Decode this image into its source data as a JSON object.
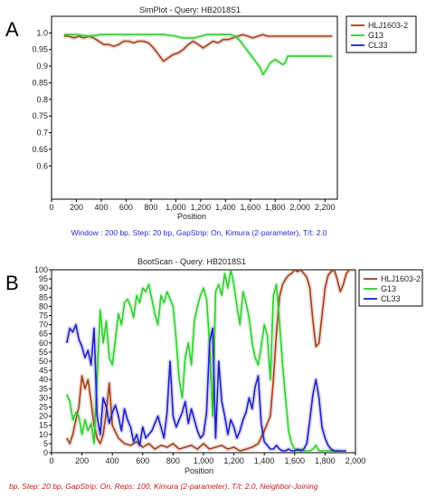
{
  "chart_data": [
    {
      "panel_label": "A",
      "type": "line",
      "title": "SimPlot - Query: HB2018S1",
      "xlabel": "Position",
      "ylabel": "",
      "xlim": [
        0,
        2300
      ],
      "ylim": [
        0.5,
        1.05
      ],
      "xticks": [
        0,
        200,
        400,
        600,
        800,
        1000,
        1200,
        1400,
        1600,
        1800,
        2000,
        2200
      ],
      "xtick_labels": [
        "0",
        "200",
        "400",
        "600",
        "800",
        "1,000",
        "1,200",
        "1,400",
        "1,600",
        "1,800",
        "2,000",
        "2,200"
      ],
      "yticks": [
        0.6,
        0.65,
        0.7,
        0.75,
        0.8,
        0.85,
        0.9,
        0.95,
        1.0
      ],
      "ytick_labels": [
        "0.6",
        "0.65",
        "0.7",
        "0.75",
        "0.8",
        "0.85",
        "0.9",
        "0.95",
        "1.0"
      ],
      "caption": "Window : 200 bp, Step: 20 bp, GapStrip: On, Kimura (2-parameter), T/t: 2.0",
      "legend_placement": "top-right outside",
      "grid": false,
      "series": [
        {
          "name": "HLJ1603-2",
          "color": "#a0401e",
          "x": [
            100,
            140,
            180,
            220,
            260,
            300,
            340,
            380,
            420,
            460,
            500,
            540,
            580,
            620,
            660,
            700,
            740,
            780,
            820,
            860,
            900,
            940,
            980,
            1020,
            1060,
            1100,
            1140,
            1180,
            1220,
            1260,
            1300,
            1340,
            1380,
            1420,
            1460,
            1500,
            1540,
            1580,
            1620,
            1660,
            1700,
            1740,
            1780,
            1820,
            1860,
            1900,
            1940,
            1980,
            2020,
            2060,
            2100,
            2140,
            2180,
            2220,
            2260
          ],
          "y": [
            0.99,
            0.99,
            0.985,
            0.99,
            0.985,
            0.99,
            0.985,
            0.975,
            0.965,
            0.965,
            0.96,
            0.965,
            0.975,
            0.975,
            0.97,
            0.975,
            0.975,
            0.97,
            0.955,
            0.935,
            0.915,
            0.925,
            0.935,
            0.94,
            0.95,
            0.965,
            0.975,
            0.965,
            0.955,
            0.965,
            0.975,
            0.97,
            0.98,
            0.98,
            0.985,
            0.99,
            0.995,
            0.99,
            0.985,
            0.99,
            0.995,
            0.99,
            0.99,
            0.99,
            0.99,
            0.99,
            0.99,
            0.99,
            0.99,
            0.99,
            0.99,
            0.99,
            0.99,
            0.99,
            0.99
          ]
        },
        {
          "name": "G13",
          "color": "#33cc33",
          "x": [
            100,
            200,
            300,
            400,
            500,
            600,
            700,
            800,
            900,
            1000,
            1050,
            1100,
            1150,
            1200,
            1250,
            1300,
            1350,
            1400,
            1440,
            1480,
            1520,
            1560,
            1600,
            1640,
            1680,
            1700,
            1720,
            1760,
            1800,
            1840,
            1860,
            1880,
            1900,
            1950,
            2000,
            2100,
            2200,
            2260
          ],
          "y": [
            0.995,
            0.995,
            0.99,
            0.995,
            0.995,
            0.995,
            0.995,
            0.995,
            0.995,
            0.99,
            0.985,
            0.985,
            0.985,
            0.99,
            0.995,
            0.995,
            0.995,
            0.995,
            0.995,
            0.99,
            0.975,
            0.955,
            0.935,
            0.915,
            0.895,
            0.875,
            0.885,
            0.91,
            0.92,
            0.91,
            0.905,
            0.91,
            0.93,
            0.93,
            0.93,
            0.93,
            0.93,
            0.93
          ]
        },
        {
          "name": "CL33",
          "color": "#2020c0",
          "x": [],
          "y": []
        }
      ]
    },
    {
      "panel_label": "B",
      "type": "line",
      "title": "BootScan - Query: HB2018S1",
      "xlabel": "Position",
      "ylabel": "",
      "xlim": [
        0,
        2000
      ],
      "ylim": [
        0,
        100
      ],
      "xticks": [
        0,
        200,
        400,
        600,
        800,
        1000,
        1200,
        1400,
        1600,
        1800,
        2000
      ],
      "xtick_labels": [
        "0",
        "200",
        "400",
        "600",
        "800",
        "1,000",
        "1,200",
        "1,400",
        "1,600",
        "1,800",
        "2,000"
      ],
      "yticks": [
        0,
        5,
        10,
        15,
        20,
        25,
        30,
        35,
        40,
        45,
        50,
        55,
        60,
        65,
        70,
        75,
        80,
        85,
        90,
        95,
        100
      ],
      "ytick_labels": [
        "0",
        "5",
        "10",
        "15",
        "20",
        "25",
        "30",
        "35",
        "40",
        "45",
        "50",
        "55",
        "60",
        "65",
        "70",
        "75",
        "80",
        "85",
        "90",
        "95",
        "100"
      ],
      "caption": "bp, Step: 20 bp, GapStrip: On, Reps: 100, Kimura (2-parameter), T/t: 2.0, Neighbor-Joining",
      "legend_placement": "top-right outside",
      "grid": false,
      "series": [
        {
          "name": "HLJ1603-2",
          "color": "#a0401e",
          "x": [
            100,
            120,
            140,
            160,
            180,
            200,
            220,
            240,
            260,
            280,
            300,
            320,
            340,
            360,
            380,
            400,
            440,
            480,
            520,
            560,
            600,
            640,
            680,
            720,
            760,
            800,
            840,
            880,
            920,
            960,
            1000,
            1040,
            1080,
            1120,
            1160,
            1200,
            1240,
            1280,
            1320,
            1360,
            1400,
            1440,
            1460,
            1480,
            1500,
            1520,
            1540,
            1560,
            1580,
            1600,
            1620,
            1640,
            1660,
            1680,
            1700,
            1720,
            1740,
            1760,
            1780,
            1800,
            1820,
            1840,
            1860,
            1880,
            1900,
            1920,
            1940,
            1960,
            1980,
            2000
          ],
          "y": [
            8,
            5,
            10,
            18,
            25,
            42,
            35,
            40,
            28,
            15,
            8,
            5,
            10,
            22,
            38,
            15,
            8,
            5,
            4,
            6,
            3,
            5,
            2,
            4,
            3,
            5,
            2,
            3,
            4,
            2,
            5,
            2,
            3,
            4,
            2,
            3,
            1,
            2,
            3,
            5,
            12,
            20,
            40,
            65,
            85,
            92,
            95,
            97,
            98,
            100,
            99,
            100,
            98,
            96,
            90,
            72,
            58,
            60,
            75,
            90,
            97,
            99,
            100,
            95,
            88,
            92,
            98,
            100,
            100,
            100
          ]
        },
        {
          "name": "G13",
          "color": "#33cc33",
          "x": [
            100,
            120,
            140,
            160,
            180,
            200,
            220,
            240,
            260,
            280,
            300,
            320,
            340,
            360,
            380,
            400,
            420,
            440,
            460,
            480,
            500,
            520,
            540,
            560,
            580,
            600,
            620,
            640,
            660,
            680,
            700,
            720,
            740,
            760,
            780,
            800,
            820,
            840,
            860,
            880,
            900,
            920,
            940,
            960,
            980,
            1000,
            1020,
            1040,
            1060,
            1080,
            1100,
            1120,
            1140,
            1160,
            1180,
            1200,
            1220,
            1240,
            1260,
            1280,
            1300,
            1320,
            1340,
            1360,
            1380,
            1400,
            1420,
            1440,
            1460,
            1480,
            1500,
            1520,
            1540,
            1560,
            1580,
            1600,
            1620,
            1640,
            1660,
            1680,
            1700,
            1720,
            1740,
            1760,
            1780,
            1800,
            1820,
            1840,
            1860,
            1880,
            1900
          ],
          "y": [
            32,
            28,
            18,
            22,
            20,
            10,
            18,
            12,
            16,
            5,
            42,
            78,
            60,
            72,
            52,
            48,
            62,
            76,
            70,
            82,
            84,
            80,
            74,
            86,
            82,
            90,
            88,
            92,
            84,
            76,
            70,
            86,
            82,
            88,
            84,
            80,
            62,
            40,
            30,
            52,
            60,
            48,
            72,
            80,
            86,
            90,
            84,
            60,
            20,
            88,
            92,
            86,
            98,
            90,
            100,
            92,
            80,
            70,
            88,
            82,
            74,
            60,
            52,
            48,
            58,
            70,
            64,
            40,
            86,
            92,
            72,
            48,
            30,
            12,
            5,
            2,
            1,
            2,
            1,
            1,
            1,
            2,
            4,
            1,
            1,
            1,
            1,
            1,
            1,
            1,
            1
          ]
        },
        {
          "name": "CL33",
          "color": "#2020c0",
          "x": [
            100,
            120,
            140,
            160,
            180,
            200,
            220,
            240,
            260,
            280,
            300,
            320,
            340,
            360,
            380,
            400,
            420,
            440,
            460,
            480,
            500,
            520,
            540,
            560,
            580,
            600,
            620,
            640,
            660,
            680,
            700,
            720,
            740,
            760,
            780,
            800,
            820,
            840,
            860,
            880,
            900,
            920,
            940,
            960,
            980,
            1000,
            1020,
            1040,
            1060,
            1080,
            1100,
            1120,
            1140,
            1160,
            1180,
            1200,
            1220,
            1240,
            1260,
            1280,
            1300,
            1320,
            1340,
            1360,
            1380,
            1400,
            1420,
            1440,
            1460,
            1480,
            1500,
            1520,
            1540,
            1560,
            1580,
            1600,
            1620,
            1640,
            1660,
            1680,
            1700,
            1720,
            1740,
            1760,
            1780,
            1800,
            1820,
            1840,
            1860,
            1880,
            1900,
            1940
          ],
          "y": [
            60,
            68,
            66,
            70,
            62,
            58,
            52,
            56,
            48,
            68,
            20,
            10,
            30,
            25,
            16,
            22,
            26,
            20,
            12,
            24,
            18,
            14,
            6,
            10,
            4,
            14,
            8,
            10,
            12,
            16,
            20,
            14,
            8,
            22,
            50,
            20,
            14,
            18,
            22,
            28,
            16,
            24,
            18,
            12,
            8,
            10,
            22,
            60,
            68,
            8,
            50,
            28,
            20,
            10,
            18,
            14,
            8,
            12,
            18,
            22,
            30,
            24,
            36,
            42,
            16,
            6,
            4,
            2,
            2,
            4,
            2,
            1,
            1,
            2,
            1,
            1,
            2,
            1,
            2,
            5,
            18,
            32,
            40,
            30,
            14,
            8,
            4,
            2,
            1,
            1,
            1,
            1
          ]
        }
      ]
    }
  ]
}
